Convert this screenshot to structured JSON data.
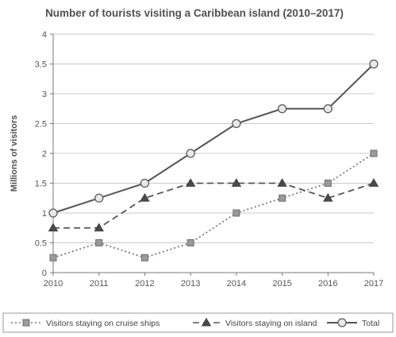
{
  "chart_data": {
    "type": "line",
    "title": "Number of tourists visiting a Caribbean island (2010–2017)",
    "xlabel": "",
    "ylabel": "Millions of visitors",
    "x": [
      "2010",
      "2011",
      "2012",
      "2013",
      "2014",
      "2015",
      "2016",
      "2017"
    ],
    "ylim": [
      0,
      4
    ],
    "yticks": [
      "0",
      "0.5",
      "1",
      "1.5",
      "2",
      "2.5",
      "3",
      "3.5",
      "4"
    ],
    "grid": true,
    "legend_position": "bottom",
    "series": [
      {
        "name": "Visitors staying on cruise ships",
        "values": [
          0.25,
          0.5,
          0.25,
          0.5,
          1.0,
          1.25,
          1.5,
          2.0
        ],
        "line_style": "dotted",
        "marker": "square",
        "color": "#7a7a7a"
      },
      {
        "name": "Visitors staying on island",
        "values": [
          0.75,
          0.75,
          1.25,
          1.5,
          1.5,
          1.5,
          1.25,
          1.5
        ],
        "line_style": "dashed",
        "marker": "triangle",
        "color": "#555555"
      },
      {
        "name": "Total",
        "values": [
          1.0,
          1.25,
          1.5,
          2.0,
          2.5,
          2.75,
          2.75,
          3.5
        ],
        "line_style": "solid",
        "marker": "circle",
        "color": "#555555"
      }
    ]
  }
}
